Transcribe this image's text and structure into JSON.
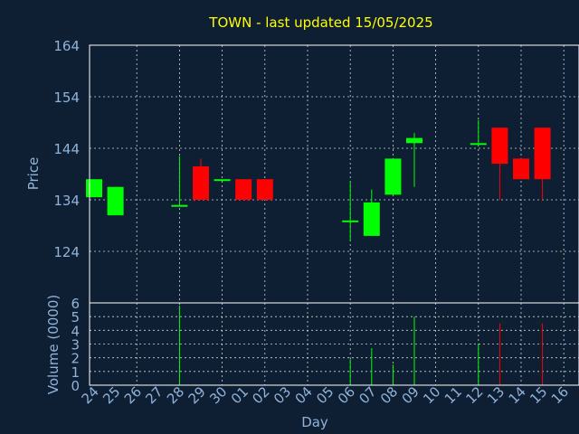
{
  "chart_data": {
    "type": "candlestick",
    "title": "TOWN - last updated 15/05/2025",
    "colors": {
      "background": "#0f1f33",
      "axis_text": "#8fb3d9",
      "title": "#ffff00",
      "up": "#00ff00",
      "down": "#ff0000",
      "frame": "#ffffff"
    },
    "price_panel": {
      "ylabel": "Price",
      "ylim": [
        114,
        164
      ],
      "ticks": [
        124,
        134,
        144,
        154,
        164
      ],
      "grid": true
    },
    "volume_panel": {
      "ylabel": "Volume (0000)",
      "ylim": [
        0,
        6
      ],
      "ticks": [
        0,
        1,
        2,
        3,
        4,
        5,
        6
      ],
      "grid": true
    },
    "xlabel": "Day",
    "x_ticks": [
      "24",
      "25",
      "26",
      "27",
      "28",
      "29",
      "30",
      "01",
      "02",
      "03",
      "04",
      "05",
      "06",
      "07",
      "08",
      "09",
      "10",
      "11",
      "12",
      "13",
      "14",
      "15",
      "16"
    ],
    "candles": [
      {
        "day": 0,
        "open": 134.5,
        "high": 138.0,
        "low": 134.5,
        "close": 138.0,
        "volume": 0
      },
      {
        "day": 1,
        "open": 131.0,
        "high": 136.5,
        "low": 131.0,
        "close": 136.5,
        "volume": 0
      },
      {
        "day": 4,
        "open": 133.0,
        "high": 142.5,
        "low": 133.0,
        "close": 133.0,
        "volume": 5.8
      },
      {
        "day": 5,
        "open": 140.5,
        "high": 142.0,
        "low": 134.0,
        "close": 134.0,
        "volume": 0
      },
      {
        "day": 6,
        "open": 138.0,
        "high": 138.0,
        "low": 138.0,
        "close": 138.0,
        "volume": 0
      },
      {
        "day": 7,
        "open": 138.0,
        "high": 138.0,
        "low": 134.0,
        "close": 134.0,
        "volume": 0
      },
      {
        "day": 8,
        "open": 138.0,
        "high": 138.0,
        "low": 134.0,
        "close": 134.0,
        "volume": 0
      },
      {
        "day": 12,
        "open": 130.0,
        "high": 137.5,
        "low": 126.0,
        "close": 130.0,
        "volume": 1.9
      },
      {
        "day": 13,
        "open": 127.0,
        "high": 136.0,
        "low": 127.0,
        "close": 133.5,
        "volume": 2.7
      },
      {
        "day": 14,
        "open": 135.0,
        "high": 142.0,
        "low": 135.0,
        "close": 142.0,
        "volume": 1.5
      },
      {
        "day": 15,
        "open": 145.0,
        "high": 147.0,
        "low": 136.5,
        "close": 146.0,
        "volume": 5.0
      },
      {
        "day": 18,
        "open": 145.0,
        "high": 149.5,
        "low": 145.0,
        "close": 145.0,
        "volume": 3.0
      },
      {
        "day": 19,
        "open": 148.0,
        "high": 148.0,
        "low": 134.0,
        "close": 141.0,
        "volume": 4.5
      },
      {
        "day": 20,
        "open": 142.0,
        "high": 142.0,
        "low": 138.0,
        "close": 138.0,
        "volume": 0
      },
      {
        "day": 21,
        "open": 148.0,
        "high": 148.0,
        "low": 134.0,
        "close": 138.0,
        "volume": 4.5
      }
    ]
  }
}
